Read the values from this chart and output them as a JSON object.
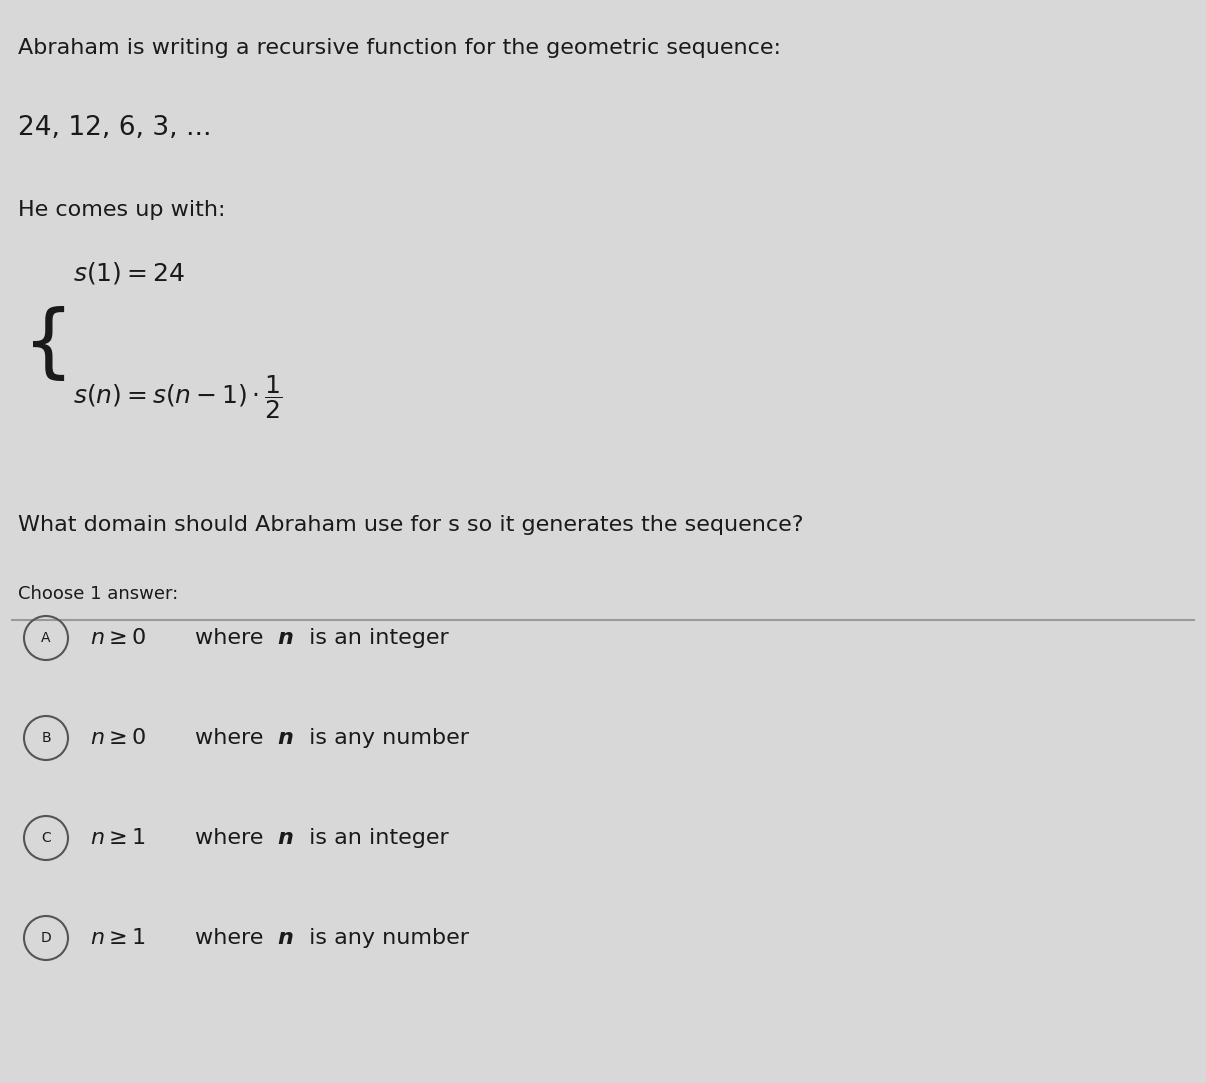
{
  "background_color": "#d8d8d8",
  "title_line": "Abraham is writing a recursive function for the geometric sequence:",
  "sequence": "24, 12, 6, 3, ...",
  "comes_up_with": "He comes up with:",
  "formula_line1": "s(1) = 24",
  "formula_line2": "s(n) = s(n−1) · ½",
  "question": "What domain should Abraham use for s so it generates the sequence?",
  "choose": "Choose 1 answer:",
  "options": [
    {
      "label": "A",
      "text_normal": " ≥ 0 where ",
      "text_bold": "n",
      "text_bold2": "n",
      "text_normal2": " is an integer",
      "prefix": "n",
      "value": "geq0_int"
    },
    {
      "label": "B",
      "text_normal": " ≥ 0 where ",
      "text_bold": "n",
      "text_bold2": "n",
      "text_normal2": " is any number",
      "prefix": "n",
      "value": "geq0_any"
    },
    {
      "label": "C",
      "text_normal": " ≥ 1 where ",
      "text_bold": "n",
      "text_bold2": "n",
      "text_normal2": " is an integer",
      "prefix": "n",
      "value": "geq1_int"
    },
    {
      "label": "D",
      "text_normal": " ≥ 1 where ",
      "text_bold": "n",
      "text_bold2": "n",
      "text_normal2": " is any number",
      "prefix": "n",
      "value": "geq1_any"
    }
  ],
  "text_color": "#1a1a1a",
  "option_bg": "#f0f0f0",
  "circle_color": "#888888",
  "separator_color": "#999999"
}
